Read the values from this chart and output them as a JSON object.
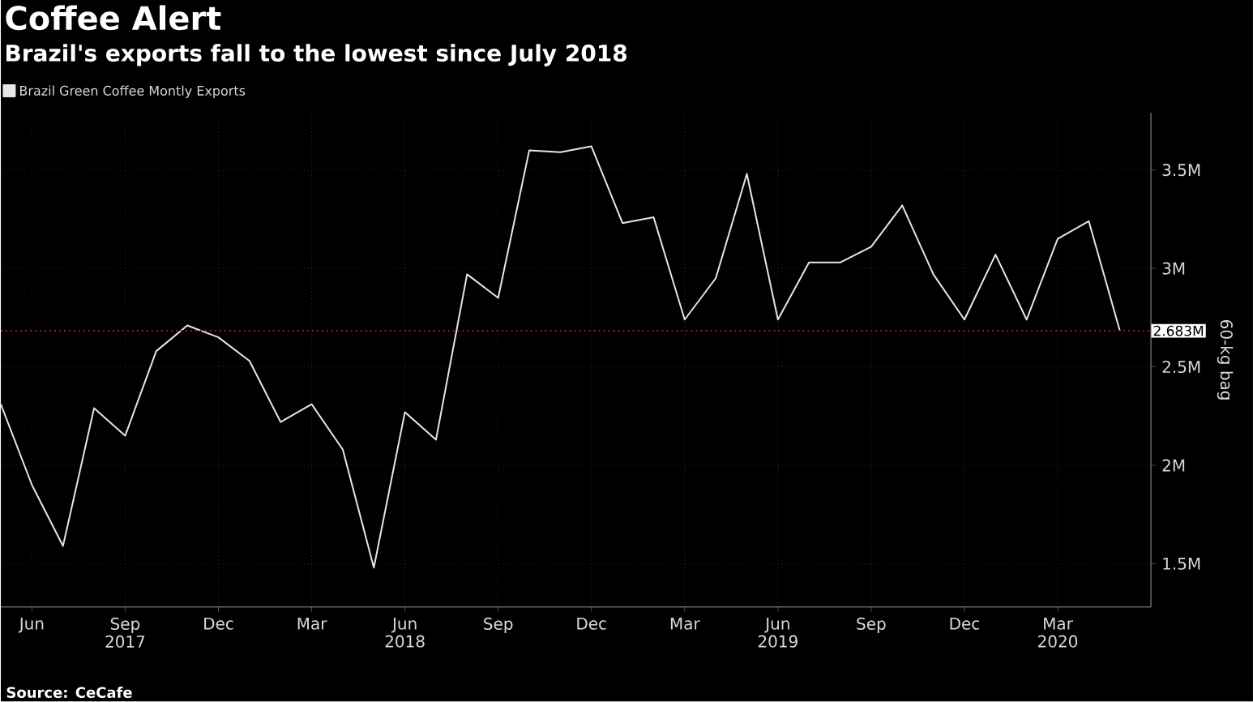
{
  "chart_data": {
    "type": "line",
    "title": "Coffee Alert",
    "subtitle": "Brazil's exports fall to the lowest since July 2018",
    "ylabel": "60-kg bag",
    "x": [
      "2017-05",
      "2017-06",
      "2017-07",
      "2017-08",
      "2017-09",
      "2017-10",
      "2017-11",
      "2017-12",
      "2018-01",
      "2018-02",
      "2018-03",
      "2018-04",
      "2018-05",
      "2018-06",
      "2018-07",
      "2018-08",
      "2018-09",
      "2018-10",
      "2018-11",
      "2018-12",
      "2019-01",
      "2019-02",
      "2019-03",
      "2019-04",
      "2019-05",
      "2019-06",
      "2019-07",
      "2019-08",
      "2019-09",
      "2019-10",
      "2019-11",
      "2019-12",
      "2020-01",
      "2020-02",
      "2020-03",
      "2020-04",
      "2020-05"
    ],
    "series": [
      {
        "name": "Brazil Green Coffee Montly Exports",
        "color": "#e6e6e6",
        "values": [
          2.31,
          1.9,
          1.59,
          2.29,
          2.15,
          2.58,
          2.71,
          2.65,
          2.53,
          2.22,
          2.31,
          2.08,
          1.48,
          2.27,
          2.13,
          2.97,
          2.85,
          3.6,
          3.59,
          3.62,
          3.23,
          3.26,
          2.74,
          2.95,
          3.48,
          2.74,
          3.03,
          3.03,
          3.11,
          3.32,
          2.97,
          2.74,
          3.07,
          2.74,
          3.15,
          3.24,
          2.683
        ]
      }
    ],
    "xlim": [
      "2017-05",
      "2020-06"
    ],
    "xticks": [
      {
        "value": "2017-06",
        "label": "Jun"
      },
      {
        "value": "2017-09",
        "label": "Sep 2017"
      },
      {
        "value": "2017-12",
        "label": "Dec"
      },
      {
        "value": "2018-03",
        "label": "Mar"
      },
      {
        "value": "2018-06",
        "label": "Jun 2018"
      },
      {
        "value": "2018-09",
        "label": "Sep"
      },
      {
        "value": "2018-12",
        "label": "Dec"
      },
      {
        "value": "2019-03",
        "label": "Mar"
      },
      {
        "value": "2019-06",
        "label": "Jun 2019"
      },
      {
        "value": "2019-09",
        "label": "Sep"
      },
      {
        "value": "2019-12",
        "label": "Dec"
      },
      {
        "value": "2020-03",
        "label": "Mar 2020"
      }
    ],
    "ylim": [
      1.28,
      3.79
    ],
    "yticks": [
      {
        "value": 1.5,
        "label": "1.5M"
      },
      {
        "value": 2,
        "label": "2M"
      },
      {
        "value": 2.5,
        "label": "2.5M"
      },
      {
        "value": 3,
        "label": "3M"
      },
      {
        "value": 3.5,
        "label": "3.5M"
      }
    ],
    "ref_lines": [
      {
        "axis": "y",
        "value": 2.683,
        "label": "2.683M",
        "color": "#9e1b1b",
        "line_style": "dotted"
      }
    ],
    "annotations": [
      "Source: CeCafe"
    ],
    "grid": true,
    "legend": "top left",
    "marker": "none",
    "line_style": "solid"
  }
}
